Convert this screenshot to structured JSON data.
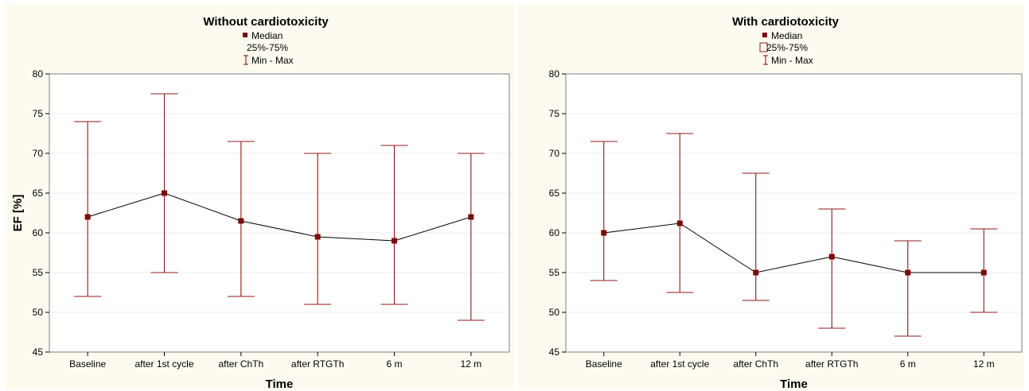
{
  "chart_data": [
    {
      "type": "line",
      "title": "Without cardiotoxicity",
      "legend": [
        {
          "symbol": "median-marker",
          "label": "Median"
        },
        {
          "symbol": "box",
          "label": "25%-75%"
        },
        {
          "symbol": "whisker",
          "label": "Min - Max"
        }
      ],
      "legend_box_drawn": false,
      "xlabel": "Time",
      "ylabel": "EF [%]",
      "categories": [
        "Baseline",
        "after 1st cycle",
        "after ChTh",
        "after RTGTh",
        "6 m",
        "12 m"
      ],
      "median": [
        62,
        65,
        61.5,
        59.5,
        59,
        62
      ],
      "min": [
        52,
        55,
        52,
        51,
        51,
        49
      ],
      "max": [
        74,
        77.5,
        71.5,
        70,
        71,
        70
      ],
      "ylim": [
        45,
        80
      ],
      "yticks": [
        45,
        50,
        55,
        60,
        65,
        70,
        75,
        80
      ],
      "grid": true,
      "legend_position": "top-center"
    },
    {
      "type": "line",
      "title": "With cardiotoxicity",
      "legend": [
        {
          "symbol": "median-marker",
          "label": "Median"
        },
        {
          "symbol": "box",
          "label": "25%-75%"
        },
        {
          "symbol": "whisker",
          "label": "Min - Max"
        }
      ],
      "legend_box_drawn": true,
      "xlabel": "Time",
      "ylabel": "",
      "categories": [
        "Baseline",
        "after 1st cycle",
        "after ChTh",
        "after RTGTh",
        "6 m",
        "12 m"
      ],
      "median": [
        60,
        61.2,
        55,
        57,
        55,
        55
      ],
      "min": [
        54,
        52.5,
        51.5,
        48,
        47,
        50
      ],
      "max": [
        71.5,
        72.5,
        67.5,
        63,
        59,
        60.5
      ],
      "ylim": [
        45,
        80
      ],
      "yticks": [
        45,
        50,
        55,
        60,
        65,
        70,
        75,
        80
      ],
      "grid": true,
      "legend_position": "top-center"
    }
  ],
  "colors": {
    "marker": "#7a0a0a",
    "whisker": "#8b1a1a",
    "line": "#000000",
    "panel_background": "#fdfbf0"
  }
}
